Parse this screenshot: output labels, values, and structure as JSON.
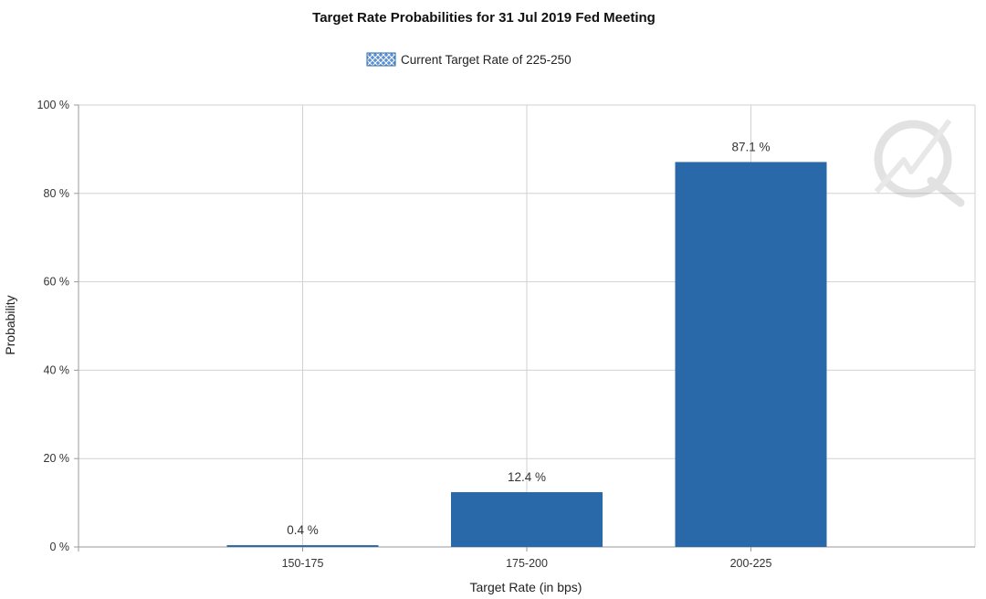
{
  "chart_data": {
    "type": "bar",
    "title": "Target Rate Probabilities for 31 Jul 2019 Fed Meeting",
    "legend": {
      "label": "Current Target Rate of 225-250",
      "placement": "top-center"
    },
    "categories": [
      "150-175",
      "175-200",
      "200-225"
    ],
    "values": [
      0.4,
      12.4,
      87.1
    ],
    "data_labels": [
      "0.4 %",
      "12.4 %",
      "87.1 %"
    ],
    "xlabel": "Target Rate (in bps)",
    "ylabel": "Probability",
    "ylim": [
      0,
      100
    ],
    "yticks": [
      "0 %",
      "20 %",
      "40 %",
      "60 %",
      "80 %",
      "100 %"
    ],
    "ytick_values": [
      0,
      20,
      40,
      60,
      80,
      100
    ],
    "grid": true,
    "bar_color": "#2a69a9",
    "watermark": "logo-watermark"
  }
}
